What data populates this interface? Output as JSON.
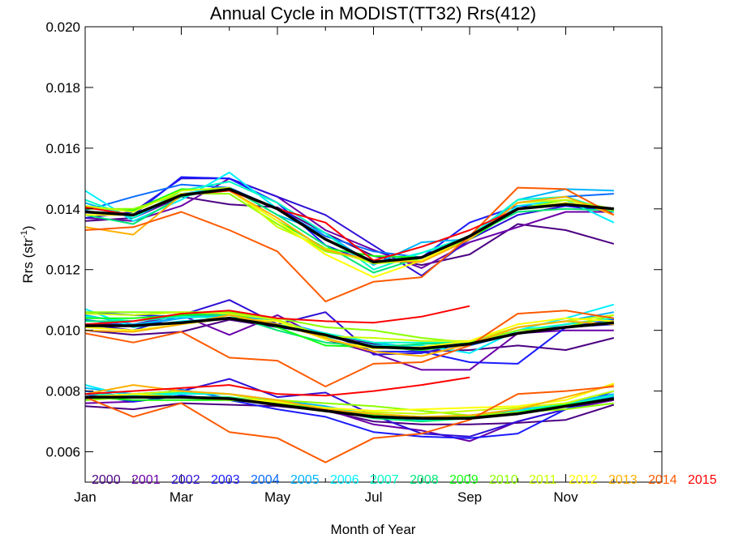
{
  "chart_data": {
    "type": "line",
    "title": "Annual Cycle in MODIST(TT32) Rrs(412)",
    "xlabel": "Month of Year",
    "ylabel": "Rrs (str",
    "ylabel_sup": "-1",
    "ylabel_close": ")",
    "xlim": [
      1,
      13
    ],
    "ylim": [
      0.005,
      0.02
    ],
    "xticks": [
      {
        "x": 1,
        "label": "Jan"
      },
      {
        "x": 3,
        "label": "Mar"
      },
      {
        "x": 5,
        "label": "May"
      },
      {
        "x": 7,
        "label": "Jul"
      },
      {
        "x": 9,
        "label": "Sep"
      },
      {
        "x": 11,
        "label": "Nov"
      }
    ],
    "yticks": [
      {
        "y": 0.006,
        "label": "0.006"
      },
      {
        "y": 0.008,
        "label": "0.008"
      },
      {
        "y": 0.01,
        "label": "0.010"
      },
      {
        "y": 0.012,
        "label": "0.012"
      },
      {
        "y": 0.014,
        "label": "0.014"
      },
      {
        "y": 0.016,
        "label": "0.016"
      },
      {
        "y": 0.018,
        "label": "0.018"
      },
      {
        "y": 0.02,
        "label": "0.020"
      }
    ],
    "grid": false,
    "legend_position": "bottom inside plot",
    "years": [
      "2000",
      "2001",
      "2002",
      "2003",
      "2004",
      "2005",
      "2006",
      "2007",
      "2008",
      "2009",
      "2010",
      "2011",
      "2012",
      "2013",
      "2014",
      "2015"
    ],
    "year_colors": [
      "#4b0082",
      "#6a00a8",
      "#2e0fd6",
      "#1a1aff",
      "#0a6cff",
      "#00b4ff",
      "#00f0ff",
      "#00ffc8",
      "#00e676",
      "#12ff12",
      "#8cff00",
      "#c8ff00",
      "#ffff00",
      "#ffb000",
      "#ff5a00",
      "#ff0000"
    ],
    "climatology_color": "#000000",
    "bands": [
      {
        "name": "upper",
        "climatology": [
          0.0139,
          0.0138,
          0.01445,
          0.01465,
          0.014,
          0.013,
          0.01225,
          0.0124,
          0.0131,
          0.014,
          0.01415,
          0.014
        ],
        "series": [
          {
            "year": "2000",
            "values": [
              0.0136,
              0.0137,
              0.0144,
              0.01415,
              0.01405,
              0.0132,
              0.01245,
              0.01215,
              0.0125,
              0.0135,
              0.0133,
              0.01285
            ]
          },
          {
            "year": "2001",
            "values": [
              0.0137,
              0.0136,
              0.0141,
              0.015,
              0.0144,
              0.0133,
              0.01265,
              0.01205,
              0.0129,
              0.0134,
              0.0139,
              0.0139
            ]
          },
          {
            "year": "2002",
            "values": [
              0.0137,
              0.0139,
              0.015,
              0.015,
              0.0144,
              0.0138,
              0.0128,
              0.0118,
              0.013,
              0.0138,
              0.0141,
              0.0139
            ]
          },
          {
            "year": "2003",
            "values": [
              0.01405,
              0.0138,
              0.01505,
              0.015,
              0.0142,
              0.0128,
              0.0122,
              0.0124,
              0.01355,
              0.0141,
              0.0141,
              0.01395
            ]
          },
          {
            "year": "2004",
            "values": [
              0.01395,
              0.0144,
              0.0148,
              0.0147,
              0.014,
              0.0131,
              0.0126,
              0.0124,
              0.013,
              0.0142,
              0.0144,
              0.0145
            ]
          },
          {
            "year": "2005",
            "values": [
              0.0142,
              0.0137,
              0.0145,
              0.0147,
              0.0138,
              0.0132,
              0.01215,
              0.0129,
              0.013,
              0.0143,
              0.01465,
              0.0146
            ]
          },
          {
            "year": "2006",
            "values": [
              0.0146,
              0.0136,
              0.0143,
              0.0152,
              0.014,
              0.013,
              0.0122,
              0.01255,
              0.013,
              0.0141,
              0.0143,
              0.01355
            ]
          },
          {
            "year": "2007",
            "values": [
              0.0143,
              0.0137,
              0.0146,
              0.0149,
              0.0142,
              0.0132,
              0.012,
              0.01255,
              0.0131,
              0.0143,
              0.0144,
              0.0139
            ]
          },
          {
            "year": "2008",
            "values": [
              0.0138,
              0.0135,
              0.0144,
              0.0147,
              0.0138,
              0.0128,
              0.0119,
              0.0124,
              0.0131,
              0.0139,
              0.014,
              0.01395
            ]
          },
          {
            "year": "2009",
            "values": [
              0.01405,
              0.01395,
              0.01465,
              0.0146,
              0.0136,
              0.0127,
              0.01245,
              0.0124,
              0.013,
              0.014,
              0.0142,
              0.01395
            ]
          },
          {
            "year": "2010",
            "values": [
              0.014,
              0.014,
              0.0145,
              0.0145,
              0.0135,
              0.0126,
              0.0123,
              0.0123,
              0.0131,
              0.014,
              0.0143,
              0.014
            ]
          },
          {
            "year": "2011",
            "values": [
              0.0141,
              0.0139,
              0.0146,
              0.0147,
              0.0134,
              0.0127,
              0.0122,
              0.0123,
              0.013,
              0.0142,
              0.0143,
              0.01395
            ]
          },
          {
            "year": "2012",
            "values": [
              0.0138,
              0.0138,
              0.0145,
              0.0146,
              0.0136,
              0.0125,
              0.01175,
              0.0123,
              0.0131,
              0.014,
              0.0142,
              0.014
            ]
          },
          {
            "year": "2013",
            "values": [
              0.0134,
              0.01315,
              0.01445,
              0.0146,
              0.0137,
              0.01265,
              0.0123,
              0.01225,
              0.013,
              0.0142,
              0.0144,
              0.0138
            ]
          },
          {
            "year": "2014",
            "values": [
              0.0133,
              0.0134,
              0.0139,
              0.0133,
              0.0126,
              0.01095,
              0.0116,
              0.01175,
              0.0131,
              0.0147,
              0.01465,
              0.0138
            ]
          },
          {
            "year": "2015",
            "values": [
              0.01405,
              0.0138,
              0.01445,
              0.0146,
              0.014,
              0.01355,
              0.0123,
              0.01275,
              0.0133,
              0.014
            ]
          }
        ]
      },
      {
        "name": "middle",
        "climatology": [
          0.01015,
          0.01015,
          0.01025,
          0.0104,
          0.01015,
          0.00985,
          0.00945,
          0.0094,
          0.00955,
          0.0099,
          0.0101,
          0.01025
        ],
        "series": [
          {
            "year": "2000",
            "values": [
              0.01,
              0.00985,
              0.00995,
              0.01035,
              0.0101,
              0.0099,
              0.00955,
              0.0093,
              0.00935,
              0.0095,
              0.00935,
              0.00975
            ]
          },
          {
            "year": "2001",
            "values": [
              0.0102,
              0.0102,
              0.0105,
              0.00985,
              0.0105,
              0.0097,
              0.00925,
              0.0087,
              0.0087,
              0.0099,
              0.01,
              0.01
            ]
          },
          {
            "year": "2002",
            "values": [
              0.0102,
              0.01,
              0.0105,
              0.011,
              0.0102,
              0.0106,
              0.0092,
              0.00925,
              0.0096,
              0.0099,
              0.0101,
              0.0102
            ]
          },
          {
            "year": "2003",
            "values": [
              0.0106,
              0.0105,
              0.01045,
              0.0106,
              0.0101,
              0.0099,
              0.0093,
              0.0093,
              0.00895,
              0.0089,
              0.0101,
              0.01035
            ]
          },
          {
            "year": "2004",
            "values": [
              0.01035,
              0.01015,
              0.0104,
              0.0106,
              0.0102,
              0.0098,
              0.0095,
              0.0094,
              0.0095,
              0.0099,
              0.0102,
              0.0104
            ]
          },
          {
            "year": "2005",
            "values": [
              0.0105,
              0.0102,
              0.0104,
              0.0105,
              0.0103,
              0.0099,
              0.0096,
              0.0094,
              0.0096,
              0.0101,
              0.0103,
              0.0106
            ]
          },
          {
            "year": "2006",
            "values": [
              0.0107,
              0.0101,
              0.0103,
              0.0104,
              0.0102,
              0.0098,
              0.0095,
              0.0095,
              0.00925,
              0.01,
              0.0104,
              0.01085
            ]
          },
          {
            "year": "2007",
            "values": [
              0.01045,
              0.0103,
              0.01045,
              0.0104,
              0.0102,
              0.0099,
              0.0096,
              0.0096,
              0.0096,
              0.01,
              0.0102,
              0.0104
            ]
          },
          {
            "year": "2008",
            "values": [
              0.0103,
              0.0103,
              0.0105,
              0.0105,
              0.01,
              0.0096,
              0.00945,
              0.00955,
              0.0096,
              0.0099,
              0.0101,
              0.0103
            ]
          },
          {
            "year": "2009",
            "values": [
              0.0104,
              0.0104,
              0.0105,
              0.0106,
              0.0101,
              0.0095,
              0.00945,
              0.00935,
              0.00955,
              0.0099,
              0.0101,
              0.01025
            ]
          },
          {
            "year": "2010",
            "values": [
              0.0106,
              0.0106,
              0.0106,
              0.0106,
              0.0104,
              0.0101,
              0.01,
              0.00975,
              0.0096,
              0.01,
              0.0101,
              0.0105
            ]
          },
          {
            "year": "2011",
            "values": [
              0.01055,
              0.0105,
              0.0106,
              0.01055,
              0.01035,
              0.0098,
              0.00975,
              0.00965,
              0.00965,
              0.0101,
              0.0103,
              0.0105
            ]
          },
          {
            "year": "2012",
            "values": [
              0.0101,
              0.01,
              0.0102,
              0.0104,
              0.0103,
              0.0097,
              0.0094,
              0.00945,
              0.00965,
              0.0102,
              0.0104,
              0.0103
            ]
          },
          {
            "year": "2013",
            "values": [
              0.01,
              0.00995,
              0.0102,
              0.0105,
              0.0102,
              0.00975,
              0.0093,
              0.00915,
              0.00955,
              0.0101,
              0.0103,
              0.0102
            ]
          },
          {
            "year": "2014",
            "values": [
              0.0099,
              0.0096,
              0.00995,
              0.0091,
              0.009,
              0.00815,
              0.0089,
              0.00895,
              0.0095,
              0.01055,
              0.01065,
              0.0104
            ]
          },
          {
            "year": "2015",
            "values": [
              0.0102,
              0.0103,
              0.01055,
              0.01065,
              0.0104,
              0.0103,
              0.01025,
              0.01045,
              0.0108
            ]
          }
        ]
      },
      {
        "name": "lower",
        "climatology": [
          0.0078,
          0.0078,
          0.0078,
          0.00775,
          0.00755,
          0.00735,
          0.00715,
          0.0071,
          0.0071,
          0.00725,
          0.0075,
          0.00775
        ],
        "series": [
          {
            "year": "2000",
            "values": [
              0.0075,
              0.0074,
              0.0076,
              0.00755,
              0.0075,
              0.00735,
              0.007,
              0.0069,
              0.0069,
              0.00695,
              0.00705,
              0.00755
            ]
          },
          {
            "year": "2001",
            "values": [
              0.0076,
              0.00765,
              0.00785,
              0.0077,
              0.0076,
              0.0074,
              0.0069,
              0.0067,
              0.00635,
              0.007,
              0.0074,
              0.0077
            ]
          },
          {
            "year": "2002",
            "values": [
              0.00775,
              0.0079,
              0.008,
              0.0084,
              0.0078,
              0.00795,
              0.0072,
              0.0066,
              0.0065,
              0.007,
              0.0074,
              0.0078
            ]
          },
          {
            "year": "2003",
            "values": [
              0.0079,
              0.00765,
              0.00785,
              0.0077,
              0.0074,
              0.00715,
              0.00665,
              0.0065,
              0.00645,
              0.0066,
              0.0074,
              0.008
            ]
          },
          {
            "year": "2004",
            "values": [
              0.008,
              0.0078,
              0.00805,
              0.00775,
              0.00765,
              0.00745,
              0.00715,
              0.00705,
              0.0072,
              0.00735,
              0.0075,
              0.0078
            ]
          },
          {
            "year": "2005",
            "values": [
              0.0081,
              0.0079,
              0.008,
              0.0079,
              0.0077,
              0.0075,
              0.0072,
              0.0071,
              0.0072,
              0.0074,
              0.0076,
              0.0079
            ]
          },
          {
            "year": "2006",
            "values": [
              0.0082,
              0.0078,
              0.0079,
              0.0079,
              0.0076,
              0.0074,
              0.0072,
              0.00705,
              0.0071,
              0.00735,
              0.0076,
              0.008
            ]
          },
          {
            "year": "2007",
            "values": [
              0.0079,
              0.00785,
              0.00795,
              0.0079,
              0.00765,
              0.00745,
              0.00725,
              0.00715,
              0.00715,
              0.0073,
              0.00755,
              0.00785
            ]
          },
          {
            "year": "2008",
            "values": [
              0.0077,
              0.0078,
              0.0078,
              0.0078,
              0.0076,
              0.0074,
              0.0071,
              0.007,
              0.0071,
              0.0073,
              0.0075,
              0.00775
            ]
          },
          {
            "year": "2009",
            "values": [
              0.0078,
              0.0077,
              0.0077,
              0.0077,
              0.0076,
              0.0074,
              0.0072,
              0.0071,
              0.00715,
              0.0073,
              0.00755,
              0.00775
            ]
          },
          {
            "year": "2010",
            "values": [
              0.0077,
              0.0078,
              0.0078,
              0.0077,
              0.0077,
              0.0076,
              0.0075,
              0.00735,
              0.0072,
              0.0073,
              0.0074,
              0.0076
            ]
          },
          {
            "year": "2011",
            "values": [
              0.0078,
              0.0079,
              0.008,
              0.0079,
              0.0076,
              0.00735,
              0.0073,
              0.00725,
              0.00735,
              0.00745,
              0.0076,
              0.008
            ]
          },
          {
            "year": "2012",
            "values": [
              0.0078,
              0.0079,
              0.0078,
              0.00775,
              0.00765,
              0.00745,
              0.00735,
              0.0074,
              0.00745,
              0.0075,
              0.0077,
              0.00825
            ]
          },
          {
            "year": "2013",
            "values": [
              0.0079,
              0.0082,
              0.008,
              0.0079,
              0.0077,
              0.0074,
              0.00725,
              0.00715,
              0.0072,
              0.0074,
              0.0078,
              0.0082
            ]
          },
          {
            "year": "2014",
            "values": [
              0.0078,
              0.00715,
              0.0076,
              0.00665,
              0.00645,
              0.00565,
              0.00645,
              0.0066,
              0.00705,
              0.0079,
              0.008,
              0.00815
            ]
          },
          {
            "year": "2015",
            "values": [
              0.0079,
              0.008,
              0.0081,
              0.0082,
              0.0079,
              0.00785,
              0.008,
              0.0082,
              0.00845
            ]
          }
        ]
      }
    ]
  }
}
